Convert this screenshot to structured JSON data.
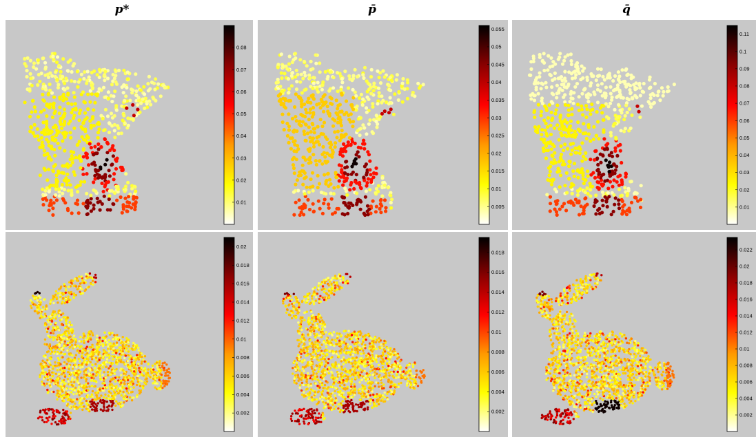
{
  "columns": [
    {
      "title": "p*"
    },
    {
      "title": "p̄"
    },
    {
      "title": "q̄"
    }
  ],
  "chart_data": [
    {
      "type": "scatter",
      "row": "top",
      "column": 1,
      "shape": "state-map-points",
      "colormap": [
        "#ffffff",
        "#ffff00",
        "#ff9900",
        "#ff0000",
        "#8b0000",
        "#000000"
      ],
      "ylim": [
        0,
        0.09
      ],
      "colorbar_ticks": [
        "0.01",
        "0.02",
        "0.03",
        "0.04",
        "0.05",
        "0.06",
        "0.07",
        "0.08"
      ]
    },
    {
      "type": "scatter",
      "row": "top",
      "column": 2,
      "shape": "state-map-points",
      "colormap": [
        "#ffffff",
        "#ffff00",
        "#ff9900",
        "#ff0000",
        "#8b0000",
        "#000000"
      ],
      "ylim": [
        0,
        0.056
      ],
      "colorbar_ticks": [
        "0.005",
        "0.01",
        "0.015",
        "0.02",
        "0.025",
        "0.03",
        "0.035",
        "0.04",
        "0.045",
        "0.05",
        "0.055"
      ]
    },
    {
      "type": "scatter",
      "row": "top",
      "column": 3,
      "shape": "state-map-points",
      "colormap": [
        "#ffffff",
        "#ffff00",
        "#ff9900",
        "#ff0000",
        "#8b0000",
        "#000000"
      ],
      "ylim": [
        0,
        0.115
      ],
      "colorbar_ticks": [
        "0.01",
        "0.02",
        "0.03",
        "0.04",
        "0.05",
        "0.06",
        "0.07",
        "0.08",
        "0.09",
        "0.1",
        "0.11"
      ]
    },
    {
      "type": "scatter",
      "row": "bottom",
      "column": 1,
      "shape": "bunny-points",
      "colormap": [
        "#ffffff",
        "#ffff00",
        "#ff9900",
        "#ff0000",
        "#8b0000",
        "#000000"
      ],
      "ylim": [
        0,
        0.021
      ],
      "colorbar_ticks": [
        "0.002",
        "0.004",
        "0.006",
        "0.008",
        "0.01",
        "0.012",
        "0.014",
        "0.016",
        "0.018",
        "0.02"
      ]
    },
    {
      "type": "scatter",
      "row": "bottom",
      "column": 2,
      "shape": "bunny-points",
      "colormap": [
        "#ffffff",
        "#ffff00",
        "#ff9900",
        "#ff0000",
        "#8b0000",
        "#000000"
      ],
      "ylim": [
        0,
        0.0195
      ],
      "colorbar_ticks": [
        "0.002",
        "0.004",
        "0.006",
        "0.008",
        "0.01",
        "0.012",
        "0.014",
        "0.016",
        "0.018"
      ]
    },
    {
      "type": "scatter",
      "row": "bottom",
      "column": 3,
      "shape": "bunny-points",
      "colormap": [
        "#ffffff",
        "#ffff00",
        "#ff9900",
        "#ff0000",
        "#8b0000",
        "#000000"
      ],
      "ylim": [
        0,
        0.0235
      ],
      "colorbar_ticks": [
        "0.002",
        "0.004",
        "0.006",
        "0.008",
        "0.01",
        "0.012",
        "0.014",
        "0.016",
        "0.018",
        "0.02",
        "0.022"
      ]
    }
  ]
}
